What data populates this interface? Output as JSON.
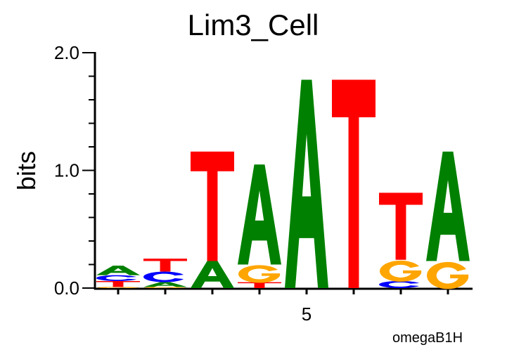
{
  "chart_data": {
    "type": "sequence-logo",
    "title": "Lim3_Cell",
    "ylabel": "bits",
    "xlabel": "",
    "footnote": "omegaB1H",
    "ylim": [
      0,
      2.0
    ],
    "yticks": [
      "0.0",
      "1.0",
      "2.0"
    ],
    "xtick_labels": [
      {
        "position": 5,
        "label": "5"
      }
    ],
    "colors": {
      "A": "#008000",
      "C": "#0000ff",
      "G": "#ffa500",
      "T": "#ff0000"
    },
    "positions": [
      {
        "position": 1,
        "letters": [
          {
            "base": "G",
            "bits": 0.01
          },
          {
            "base": "T",
            "bits": 0.05
          },
          {
            "base": "C",
            "bits": 0.05
          },
          {
            "base": "A",
            "bits": 0.08
          }
        ]
      },
      {
        "position": 2,
        "letters": [
          {
            "base": "G",
            "bits": 0.01
          },
          {
            "base": "A",
            "bits": 0.04
          },
          {
            "base": "C",
            "bits": 0.09
          },
          {
            "base": "T",
            "bits": 0.11
          }
        ]
      },
      {
        "position": 3,
        "letters": [
          {
            "base": "A",
            "bits": 0.23
          },
          {
            "base": "T",
            "bits": 0.93
          }
        ]
      },
      {
        "position": 4,
        "letters": [
          {
            "base": "T",
            "bits": 0.05
          },
          {
            "base": "G",
            "bits": 0.15
          },
          {
            "base": "A",
            "bits": 0.85
          }
        ]
      },
      {
        "position": 5,
        "letters": [
          {
            "base": "A",
            "bits": 1.77
          }
        ]
      },
      {
        "position": 6,
        "letters": [
          {
            "base": "T",
            "bits": 1.77
          }
        ]
      },
      {
        "position": 7,
        "letters": [
          {
            "base": "C",
            "bits": 0.06
          },
          {
            "base": "G",
            "bits": 0.18
          },
          {
            "base": "T",
            "bits": 0.57
          }
        ]
      },
      {
        "position": 8,
        "letters": [
          {
            "base": "G",
            "bits": 0.23
          },
          {
            "base": "A",
            "bits": 0.93
          }
        ]
      }
    ]
  }
}
